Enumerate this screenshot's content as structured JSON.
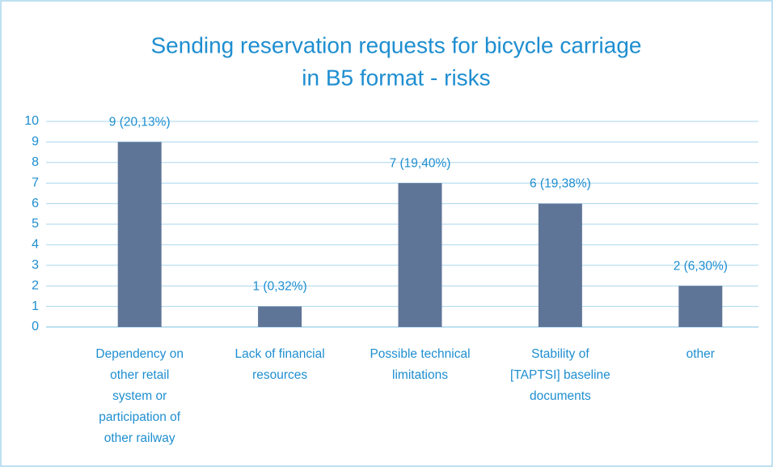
{
  "chart_data": {
    "type": "bar",
    "title": [
      "Sending reservation requests for bicycle carriage",
      "in B5 format - risks"
    ],
    "categories": [
      [
        "Dependency on",
        "other retail",
        "system or",
        "participation of",
        "other railway"
      ],
      [
        "Lack of financial",
        "resources"
      ],
      [
        "Possible technical",
        "limitations"
      ],
      [
        "Stability of",
        "[TAPTSI] baseline",
        "documents"
      ],
      [
        "other"
      ]
    ],
    "values": [
      9,
      1,
      7,
      6,
      2
    ],
    "value_labels": [
      "9 (20,13%)",
      "1 (0,32%)",
      "7 (19,40%)",
      "6 (19,38%)",
      "2 (6,30%)"
    ],
    "color": "#5f7598",
    "ylim": [
      0,
      10
    ],
    "yticks": [
      0,
      1,
      2,
      3,
      4,
      5,
      6,
      7,
      8,
      9,
      10
    ],
    "grid": true
  }
}
